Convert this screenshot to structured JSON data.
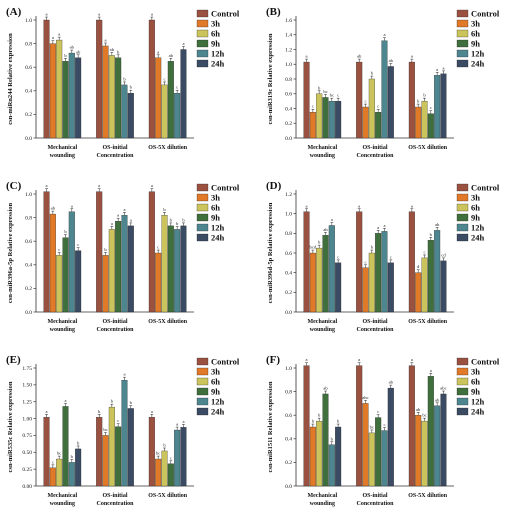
{
  "legend_labels": [
    "Control",
    "3h",
    "6h",
    "9h",
    "12h",
    "24h"
  ],
  "colors": [
    "#9b5140",
    "#e07a28",
    "#cbc45c",
    "#3f6f3c",
    "#4e8690",
    "#3a4b63"
  ],
  "chart_data": [
    {
      "type": "bar",
      "panel_label": "(A)",
      "ylabel": "csn-miRn244 Relative expression",
      "categories": [
        "Mechanical wounding",
        "OS-initial Concentration",
        "OS-5X dilution"
      ],
      "yticks": [
        "0.0",
        "0.2",
        "0.4",
        "0.6",
        "0.8",
        "1.0"
      ],
      "ylim": [
        0,
        1.0
      ],
      "series": [
        {
          "name": "Control",
          "values": [
            1.0,
            1.0,
            1.0
          ],
          "labels": [
            "a",
            "a",
            "a"
          ]
        },
        {
          "name": "3h",
          "values": [
            0.8,
            0.78,
            0.68
          ],
          "labels": [
            "a",
            "a",
            "a"
          ]
        },
        {
          "name": "6h",
          "values": [
            0.83,
            0.7,
            0.45
          ],
          "labels": [
            "a",
            "ab",
            "c"
          ]
        },
        {
          "name": "9h",
          "values": [
            0.65,
            0.68,
            0.65
          ],
          "labels": [
            "b",
            "b",
            "ab"
          ]
        },
        {
          "name": "12h",
          "values": [
            0.72,
            0.45,
            0.38
          ],
          "labels": [
            "ab",
            "b",
            "c"
          ]
        },
        {
          "name": "24h",
          "values": [
            0.68,
            0.38,
            0.75
          ],
          "labels": [
            "ab",
            "b",
            "a"
          ]
        }
      ]
    },
    {
      "type": "bar",
      "panel_label": "(B)",
      "ylabel": "csn-miR319c Relative expression",
      "categories": [
        "Mechanical wounding",
        "OS-initial Concentration",
        "OS-5X dilution"
      ],
      "yticks": [
        "0.0",
        "0.2",
        "0.4",
        "0.6",
        "0.8",
        "1.0",
        "1.2",
        "1.4",
        "1.6"
      ],
      "ylim": [
        0,
        1.6
      ],
      "series": [
        {
          "name": "Control",
          "values": [
            1.03,
            1.03,
            1.03
          ],
          "labels": [
            "a",
            "ab",
            "a"
          ]
        },
        {
          "name": "3h",
          "values": [
            0.35,
            0.42,
            0.42
          ],
          "labels": [
            "c",
            "c",
            "b"
          ]
        },
        {
          "name": "6h",
          "values": [
            0.6,
            0.8,
            0.5
          ],
          "labels": [
            "b",
            "b",
            "b"
          ]
        },
        {
          "name": "9h",
          "values": [
            0.55,
            0.35,
            0.33
          ],
          "labels": [
            "bc",
            "c",
            "c"
          ]
        },
        {
          "name": "12h",
          "values": [
            0.5,
            1.32,
            0.85
          ],
          "labels": [
            "bc",
            "a",
            "a"
          ]
        },
        {
          "name": "24h",
          "values": [
            0.5,
            0.97,
            0.87
          ],
          "labels": [
            "c",
            "ab",
            "a"
          ]
        }
      ]
    },
    {
      "type": "bar",
      "panel_label": "(C)",
      "ylabel": "csn-miR396a-5p Relative expression",
      "categories": [
        "Mechanical wounding",
        "OS-initial Concentration",
        "OS-5X dilution"
      ],
      "yticks": [
        "0.0",
        "0.2",
        "0.4",
        "0.6",
        "0.8",
        "1.0"
      ],
      "ylim": [
        0,
        1.0
      ],
      "series": [
        {
          "name": "Control",
          "values": [
            1.02,
            1.02,
            1.02
          ],
          "labels": [
            "a",
            "a",
            "a"
          ]
        },
        {
          "name": "3h",
          "values": [
            0.83,
            0.48,
            0.5
          ],
          "labels": [
            "ab",
            "b",
            "c"
          ]
        },
        {
          "name": "6h",
          "values": [
            0.48,
            0.7,
            0.82
          ],
          "labels": [
            "c",
            "a",
            "b"
          ]
        },
        {
          "name": "9h",
          "values": [
            0.63,
            0.77,
            0.73
          ],
          "labels": [
            "b",
            "a",
            "b"
          ]
        },
        {
          "name": "12h",
          "values": [
            0.85,
            0.82,
            0.7
          ],
          "labels": [
            "a",
            "a",
            "b"
          ]
        },
        {
          "name": "24h",
          "values": [
            0.52,
            0.73,
            0.73
          ],
          "labels": [
            "c",
            "a",
            "b"
          ]
        }
      ]
    },
    {
      "type": "bar",
      "panel_label": "(D)",
      "ylabel": "csn-miR396d-5p Relative expression",
      "categories": [
        "Mechanical wounding",
        "OS-initial Concentration",
        "OS-5X dilution"
      ],
      "yticks": [
        "0.0",
        "0.2",
        "0.4",
        "0.6",
        "0.8",
        "1.0",
        "1.2"
      ],
      "ylim": [
        0,
        1.2
      ],
      "series": [
        {
          "name": "Control",
          "values": [
            1.02,
            1.02,
            1.02
          ],
          "labels": [
            "a",
            "a",
            "a"
          ]
        },
        {
          "name": "3h",
          "values": [
            0.6,
            0.45,
            0.4
          ],
          "labels": [
            "bcd",
            "c",
            "d"
          ]
        },
        {
          "name": "6h",
          "values": [
            0.65,
            0.6,
            0.55
          ],
          "labels": [
            "b",
            "b",
            "c"
          ]
        },
        {
          "name": "9h",
          "values": [
            0.78,
            0.8,
            0.73
          ],
          "labels": [
            "ab",
            "a",
            "b"
          ]
        },
        {
          "name": "12h",
          "values": [
            0.88,
            0.82,
            0.83
          ],
          "labels": [
            "a",
            "a",
            "ab"
          ]
        },
        {
          "name": "24h",
          "values": [
            0.5,
            0.5,
            0.52
          ],
          "labels": [
            "c",
            "c",
            "cd"
          ]
        }
      ]
    },
    {
      "type": "bar",
      "panel_label": "(E)",
      "ylabel": "csn-miR535c Relative expression",
      "categories": [
        "Mechanical wounding",
        "OS-initial Concentration",
        "OS-5X dilution"
      ],
      "yticks": [
        "0.00",
        "0.25",
        "0.50",
        "0.75",
        "1.00",
        "1.25",
        "1.50",
        "1.75"
      ],
      "ylim": [
        0,
        1.75
      ],
      "series": [
        {
          "name": "Control",
          "values": [
            1.02,
            1.02,
            1.02
          ],
          "labels": [
            "a",
            "b",
            "a"
          ]
        },
        {
          "name": "3h",
          "values": [
            0.27,
            0.75,
            0.4
          ],
          "labels": [
            "c",
            "bc",
            "bc"
          ]
        },
        {
          "name": "6h",
          "values": [
            0.4,
            1.17,
            0.52
          ],
          "labels": [
            "bc",
            "b",
            "b"
          ]
        },
        {
          "name": "9h",
          "values": [
            1.18,
            0.88,
            0.33
          ],
          "labels": [
            "a",
            "c",
            "c"
          ]
        },
        {
          "name": "12h",
          "values": [
            0.35,
            1.57,
            0.83
          ],
          "labels": [
            "b",
            "a",
            "a"
          ]
        },
        {
          "name": "24h",
          "values": [
            0.55,
            1.15,
            0.87
          ],
          "labels": [
            "b",
            "b",
            "a"
          ]
        }
      ]
    },
    {
      "type": "bar",
      "panel_label": "(F)",
      "ylabel": "csn-miR1511 Relative expression",
      "categories": [
        "Mechanical wounding",
        "OS-initial Concentration",
        "OS-5X dilution"
      ],
      "yticks": [
        "0.0",
        "0.2",
        "0.4",
        "0.6",
        "0.8",
        "1.0"
      ],
      "ylim": [
        0,
        1.0
      ],
      "series": [
        {
          "name": "Control",
          "values": [
            1.02,
            1.02,
            1.02
          ],
          "labels": [
            "a",
            "a",
            "a"
          ]
        },
        {
          "name": "3h",
          "values": [
            0.5,
            0.7,
            0.6
          ],
          "labels": [
            "b",
            "abc",
            "ab"
          ]
        },
        {
          "name": "6h",
          "values": [
            0.55,
            0.45,
            0.55
          ],
          "labels": [
            "b",
            "bc",
            "bc"
          ]
        },
        {
          "name": "9h",
          "values": [
            0.78,
            0.58,
            0.93
          ],
          "labels": [
            "ab",
            "c",
            "a"
          ]
        },
        {
          "name": "12h",
          "values": [
            0.35,
            0.47,
            0.68
          ],
          "labels": [
            "b",
            "c",
            "ab"
          ]
        },
        {
          "name": "24h",
          "values": [
            0.5,
            0.83,
            0.78
          ],
          "labels": [
            "b",
            "ab",
            "abc"
          ]
        }
      ]
    }
  ]
}
